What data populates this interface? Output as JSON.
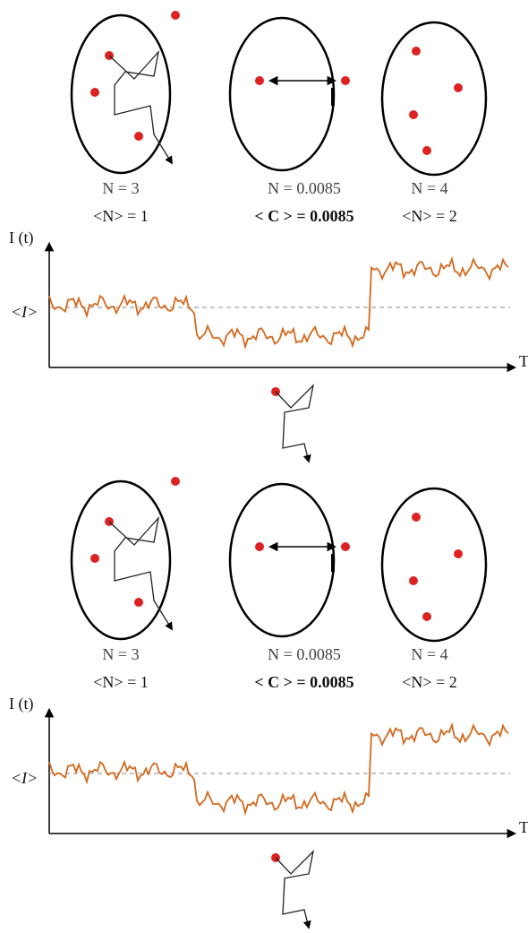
{
  "panels": [
    {
      "ellipses": [
        {
          "count_label": "N = 3",
          "mean_label": "<N> = 1"
        },
        {
          "count_label": "N = 0.0085",
          "mean_label": "< C > = 0.0085"
        },
        {
          "count_label": "N = 4",
          "mean_label": "<N> = 2"
        }
      ],
      "axis": {
        "y_label": "I (t)",
        "mean_label": "<I>",
        "x_label": "T"
      }
    },
    {
      "ellipses": [
        {
          "count_label": "N = 3",
          "mean_label": "<N> = 1"
        },
        {
          "count_label": "N = 0.0085",
          "mean_label": "< C > = 0.0085"
        },
        {
          "count_label": "N = 4",
          "mean_label": "<N> = 2"
        }
      ],
      "axis": {
        "y_label": "I (t)",
        "mean_label": "<I>",
        "x_label": "T"
      }
    }
  ]
}
